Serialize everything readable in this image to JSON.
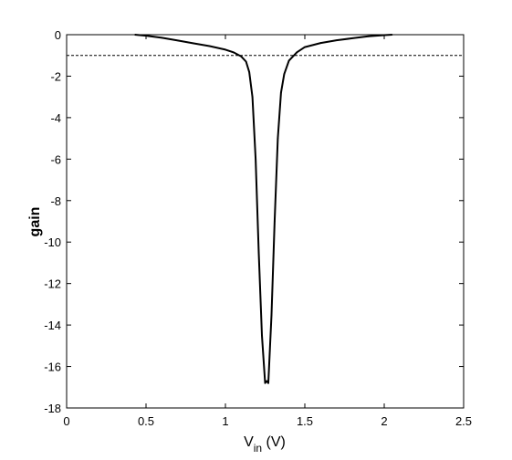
{
  "chart_data": {
    "type": "line",
    "title": "",
    "xlabel": "V",
    "xlabel_subscript": "in",
    "xlabel_unit": " (V)",
    "ylabel": "gain",
    "xlim": [
      0,
      2.5
    ],
    "ylim": [
      -18,
      0
    ],
    "xticks": [
      0,
      0.5,
      1,
      1.5,
      2,
      2.5
    ],
    "xtick_labels": [
      "0",
      "0.5",
      "1",
      "1.5",
      "2",
      "2.5"
    ],
    "yticks": [
      0,
      -2,
      -4,
      -6,
      -8,
      -10,
      -12,
      -14,
      -16,
      -18
    ],
    "ytick_labels": [
      "0",
      "-2",
      "-4",
      "-6",
      "-8",
      "-10",
      "-12",
      "-14",
      "-16",
      "-18"
    ],
    "grid": false,
    "reference_line": {
      "y": -1,
      "style": "dashed",
      "color": "#000000"
    },
    "series": [
      {
        "color": "#000000",
        "x": [
          0.43,
          0.5,
          0.6,
          0.7,
          0.8,
          0.9,
          1.0,
          1.05,
          1.1,
          1.13,
          1.15,
          1.17,
          1.19,
          1.21,
          1.23,
          1.25,
          1.26,
          1.27,
          1.29,
          1.31,
          1.33,
          1.35,
          1.37,
          1.4,
          1.45,
          1.5,
          1.6,
          1.7,
          1.8,
          1.9,
          2.0,
          2.05
        ],
        "y": [
          0.0,
          -0.05,
          -0.15,
          -0.28,
          -0.42,
          -0.55,
          -0.72,
          -0.85,
          -1.05,
          -1.3,
          -1.8,
          -3.0,
          -6.0,
          -10.5,
          -14.5,
          -16.8,
          -16.7,
          -16.8,
          -13.5,
          -9.0,
          -5.0,
          -2.8,
          -1.9,
          -1.25,
          -0.85,
          -0.6,
          -0.4,
          -0.27,
          -0.17,
          -0.08,
          -0.02,
          0.0
        ]
      }
    ]
  }
}
